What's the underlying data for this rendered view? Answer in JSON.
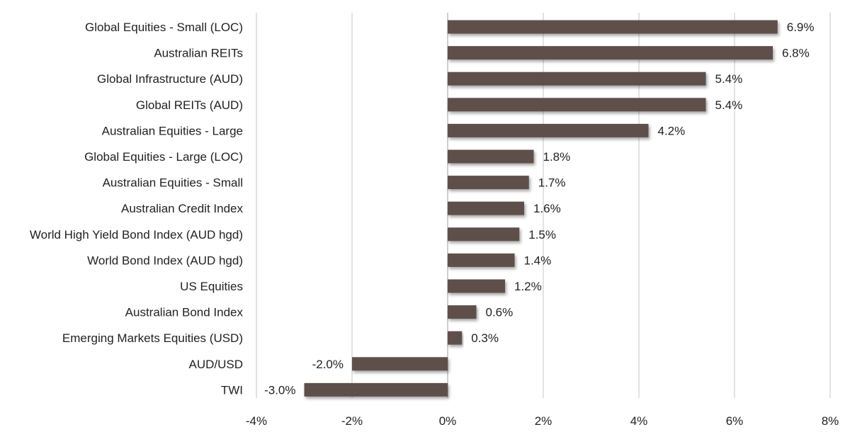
{
  "chart_data": {
    "type": "bar",
    "orientation": "horizontal",
    "categories": [
      "Global Equities - Small (LOC)",
      "Australian REITs",
      "Global Infrastructure (AUD)",
      "Global REITs (AUD)",
      "Australian Equities - Large",
      "Global Equities - Large (LOC)",
      "Australian Equities - Small",
      "Australian Credit Index",
      "World High Yield Bond Index (AUD hgd)",
      "World Bond Index (AUD hgd)",
      "US Equities",
      "Australian Bond Index",
      "Emerging Markets Equities (USD)",
      "AUD/USD",
      "TWI"
    ],
    "values": [
      6.9,
      6.8,
      5.4,
      5.4,
      4.2,
      1.8,
      1.7,
      1.6,
      1.5,
      1.4,
      1.2,
      0.6,
      0.3,
      -2.0,
      -3.0
    ],
    "data_labels": [
      "6.9%",
      "6.8%",
      "5.4%",
      "5.4%",
      "4.2%",
      "1.8%",
      "1.7%",
      "1.6%",
      "1.5%",
      "1.4%",
      "1.2%",
      "0.6%",
      "0.3%",
      "-2.0%",
      "-3.0%"
    ],
    "xlim": [
      -4,
      8
    ],
    "ticks": [
      -4,
      -2,
      0,
      2,
      4,
      6,
      8
    ],
    "tick_labels": [
      "-4%",
      "-2%",
      "0%",
      "2%",
      "4%",
      "6%",
      "8%"
    ],
    "title": "",
    "xlabel": "",
    "ylabel": "",
    "grid": "vertical",
    "legend": "none",
    "bar_color": "#5e504b",
    "grid_color": "#d9d9d9"
  }
}
